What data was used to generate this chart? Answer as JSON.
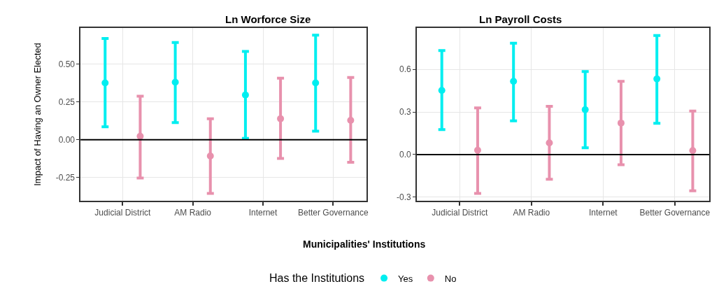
{
  "chart_data": [
    {
      "type": "scatter",
      "title": "Ln Worforce Size",
      "xlabel": "Municipalities' Institutions",
      "ylabel": "Impact of Having an Owner Elected",
      "legend_title": "Has the Institutions",
      "legend": "bottom",
      "marker": "circle",
      "grid": true,
      "categories": [
        "Judicial District",
        "AM Radio",
        "Internet",
        "Better Governance"
      ],
      "ylim": [
        -0.405,
        0.74
      ],
      "yticks": [
        {
          "value": -0.25,
          "label": "-0.25"
        },
        {
          "value": 0,
          "label": "0.00"
        },
        {
          "value": 0.25,
          "label": "0.25"
        },
        {
          "value": 0.5,
          "label": "0.50"
        }
      ],
      "ref_lines": [
        {
          "axis": "y",
          "value": 0,
          "color": "#000000"
        }
      ],
      "series": [
        {
          "name": "Yes",
          "color": "#00eef0",
          "values": [
            0.376,
            0.381,
            0.296,
            0.376
          ],
          "errors": [
            [
              0.085,
              0.67
            ],
            [
              0.113,
              0.644
            ],
            [
              0.009,
              0.585
            ],
            [
              0.056,
              0.693
            ]
          ]
        },
        {
          "name": "No",
          "color": "#e891ad",
          "values": [
            0.023,
            -0.108,
            0.139,
            0.128
          ],
          "errors": [
            [
              -0.254,
              0.288
            ],
            [
              -0.356,
              0.139
            ],
            [
              -0.124,
              0.407
            ],
            [
              -0.15,
              0.412
            ]
          ]
        }
      ]
    },
    {
      "type": "scatter",
      "title": "Ln Payroll Costs",
      "marker": "circle",
      "grid": true,
      "categories": [
        "Judicial District",
        "AM Radio",
        "Internet",
        "Better Governance"
      ],
      "ylim": [
        -0.325,
        0.891
      ],
      "yticks": [
        {
          "value": -0.3,
          "label": "-0.3"
        },
        {
          "value": 0,
          "label": "0.0"
        },
        {
          "value": 0.3,
          "label": "0.3"
        },
        {
          "value": 0.6,
          "label": "0.6"
        }
      ],
      "ref_lines": [
        {
          "axis": "y",
          "value": 0,
          "color": "#000000"
        }
      ],
      "series": [
        {
          "color": "#00eef0",
          "values": [
            0.452,
            0.516,
            0.316,
            0.533
          ],
          "errors": [
            [
              0.176,
              0.732
            ],
            [
              0.238,
              0.784
            ],
            [
              0.048,
              0.584
            ],
            [
              0.22,
              0.838
            ]
          ]
        },
        {
          "color": "#e891ad",
          "values": [
            0.031,
            0.082,
            0.222,
            0.028
          ],
          "errors": [
            [
              -0.273,
              0.329
            ],
            [
              -0.174,
              0.34
            ],
            [
              -0.071,
              0.516
            ],
            [
              -0.255,
              0.307
            ]
          ]
        }
      ]
    }
  ]
}
